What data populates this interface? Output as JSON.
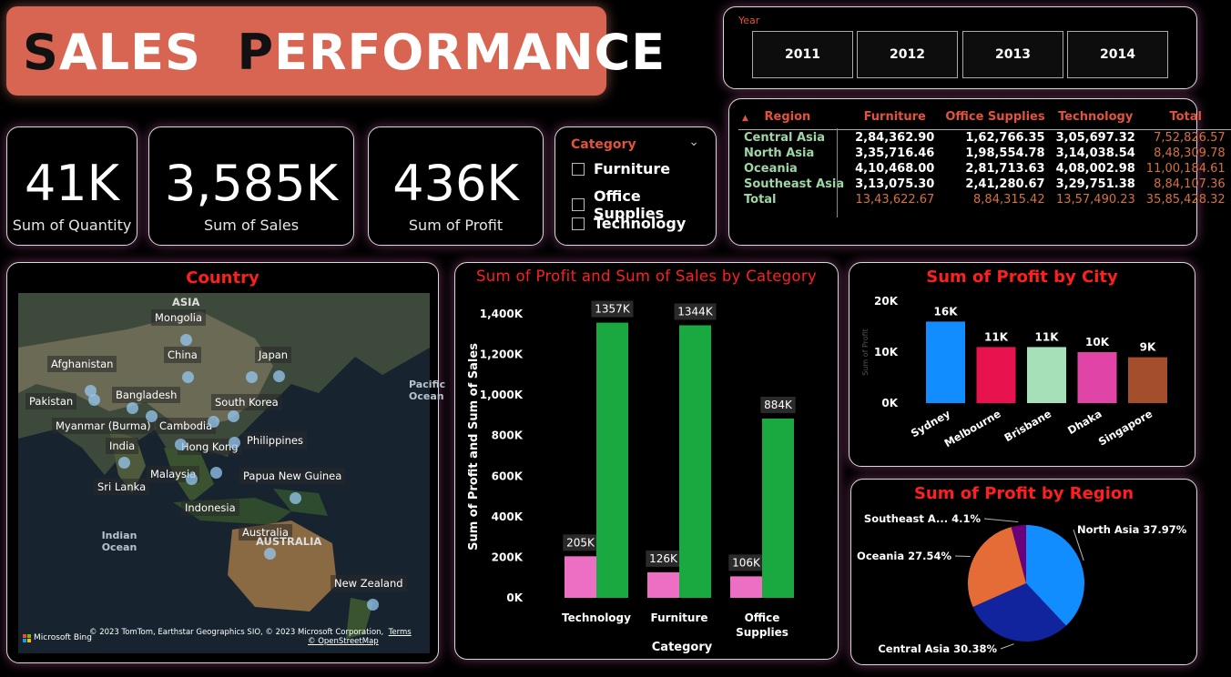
{
  "header": {
    "title_first": "S",
    "title_rest1": "ALES  ",
    "title_second": "P",
    "title_rest2": "ERFORMANCE"
  },
  "year_slicer": {
    "label": "Year",
    "years": [
      "2011",
      "2012",
      "2013",
      "2014"
    ]
  },
  "kpis": [
    {
      "value": "41K",
      "label": "Sum of Quantity"
    },
    {
      "value": "3,585K",
      "label": "Sum of Sales"
    },
    {
      "value": "436K",
      "label": "Sum of Profit"
    }
  ],
  "category_slicer": {
    "title": "Category",
    "items": [
      "Furniture",
      "Office Supplies",
      "Technology"
    ]
  },
  "matrix": {
    "headers": [
      "Region",
      "Furniture",
      "Office Supplies",
      "Technology",
      "Total"
    ],
    "rows": [
      [
        "Central Asia",
        "2,84,362.90",
        "1,62,766.35",
        "3,05,697.32",
        "7,52,826.57"
      ],
      [
        "North Asia",
        "3,35,716.46",
        "1,98,554.78",
        "3,14,038.54",
        "8,48,309.78"
      ],
      [
        "Oceania",
        "4,10,468.00",
        "2,81,713.63",
        "4,08,002.98",
        "11,00,184.61"
      ],
      [
        "Southeast Asia",
        "3,13,075.30",
        "2,41,280.67",
        "3,29,751.38",
        "8,84,107.36"
      ],
      [
        "Total",
        "13,43,622.67",
        "8,84,315.42",
        "13,57,490.23",
        "35,85,428.32"
      ]
    ]
  },
  "map": {
    "title": "Country",
    "labels": [
      "ASIA",
      "Mongolia",
      "China",
      "Japan",
      "Afghanistan",
      "Pakistan",
      "Bangladesh",
      "South Korea",
      "Myanmar (Burma)",
      "Cambodia",
      "Hong Kong",
      "Philippines",
      "India",
      "Malaysia",
      "Papua New Guinea",
      "Sri Lanka",
      "Indonesia",
      "Australia",
      "AUSTRALIA",
      "Indian Ocean",
      "Pacific Ocean",
      "New Zealand"
    ],
    "attribution": "© 2023 TomTom, Earthstar Geographics SIO, © 2023 Microsoft Corporation,",
    "terms": "Terms",
    "osm": "© OpenStreetMap",
    "bing": "Microsoft Bing"
  },
  "bar_chart": {
    "title": "Sum of Profit and Sum of Sales by Category",
    "xlabel": "Category",
    "ylabel": "Sum of Profit and Sum of Sales",
    "y_ticks": [
      "0K",
      "200K",
      "400K",
      "600K",
      "800K",
      "1,000K",
      "1,200K",
      "1,400K"
    ]
  },
  "city_chart": {
    "title": "Sum of Profit by City",
    "ylabel": "Sum of Profit",
    "y_ticks": [
      "0K",
      "10K",
      "20K"
    ]
  },
  "pie_chart": {
    "title": "Sum of Profit by Region"
  },
  "chart_data": [
    {
      "type": "bar",
      "title": "Sum of Profit and Sum of Sales by Category",
      "xlabel": "Category",
      "ylabel": "Sum of Profit and Sum of Sales",
      "categories": [
        "Technology",
        "Furniture",
        "Office Supplies"
      ],
      "series": [
        {
          "values": [
            205,
            126,
            106
          ],
          "labels": [
            "205K",
            "126K",
            "106K"
          ],
          "color": "#ec6fc4"
        },
        {
          "values": [
            1357,
            1344,
            884
          ],
          "labels": [
            "1357K",
            "1344K",
            "884K"
          ],
          "color": "#19a940"
        }
      ],
      "ylim": [
        0,
        1400
      ],
      "legend": "none"
    },
    {
      "type": "bar",
      "title": "Sum of Profit by City",
      "ylabel": "Sum of Profit",
      "categories": [
        "Sydney",
        "Melbourne",
        "Brisbane",
        "Dhaka",
        "Singapore"
      ],
      "values": [
        16,
        11,
        11,
        10,
        9
      ],
      "labels": [
        "16K",
        "11K",
        "11K",
        "10K",
        "9K"
      ],
      "colors": [
        "#118dff",
        "#e8124f",
        "#a6e0b8",
        "#e044a7",
        "#a54e2c"
      ],
      "ylim": [
        0,
        20
      ]
    },
    {
      "type": "pie",
      "title": "Sum of Profit by Region",
      "slices": [
        {
          "label": "North Asia",
          "value": 37.97,
          "text": "North Asia 37.97%",
          "color": "#118dff"
        },
        {
          "label": "Central Asia",
          "value": 30.38,
          "text": "Central Asia 30.38%",
          "color": "#12239e"
        },
        {
          "label": "Oceania",
          "value": 27.54,
          "text": "Oceania 27.54%",
          "color": "#e66c37"
        },
        {
          "label": "Southeast Asia",
          "value": 4.1,
          "text": "Southeast A... 4.1%",
          "color": "#6b007b"
        }
      ]
    }
  ]
}
